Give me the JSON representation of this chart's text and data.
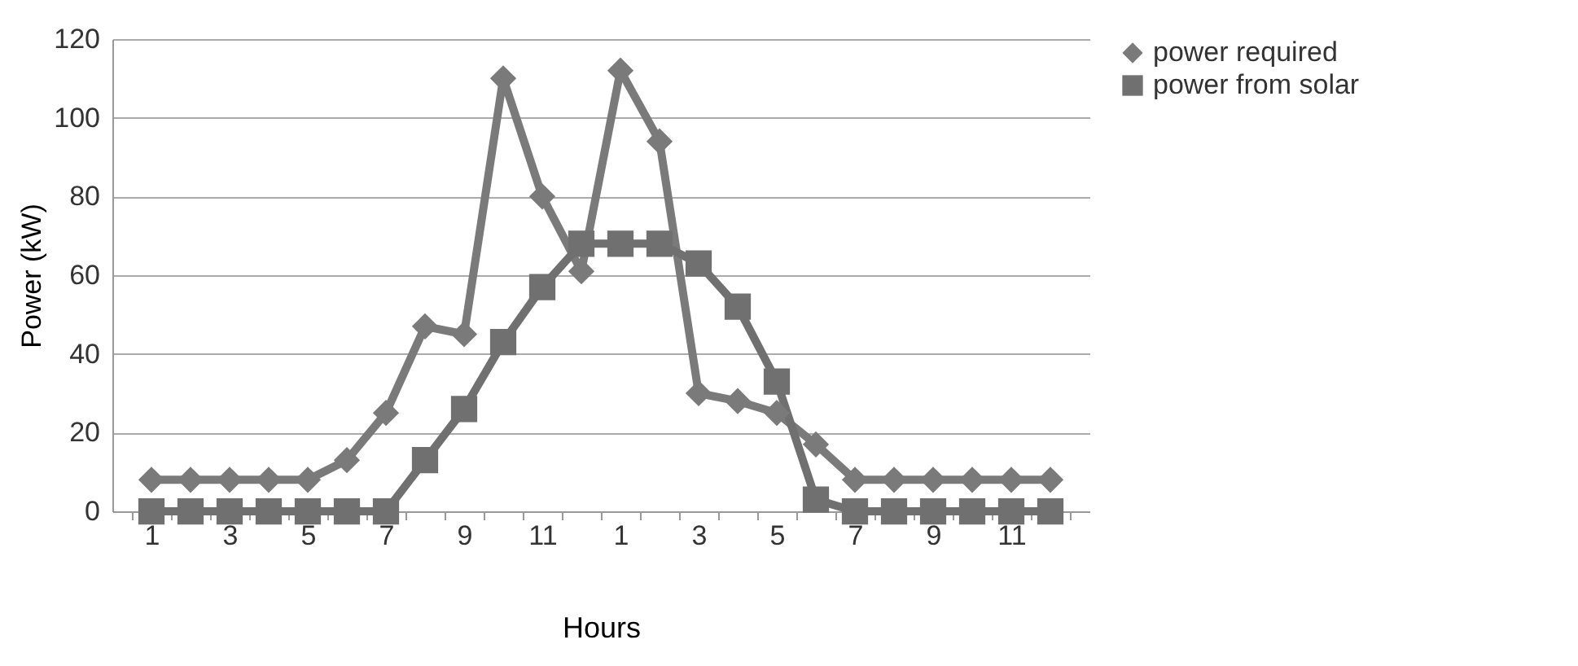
{
  "chart_data": {
    "type": "line",
    "xlabel": "Hours",
    "ylabel": "Power (kW)",
    "categories": [
      "1",
      null,
      "3",
      null,
      "5",
      null,
      "7",
      null,
      "9",
      null,
      "11",
      null,
      "1",
      null,
      "3",
      null,
      "5",
      null,
      "7",
      null,
      "9",
      null,
      "11",
      null
    ],
    "series": [
      {
        "name": "power required",
        "color": "#7a7a7a",
        "marker": "diamond",
        "values": [
          8,
          8,
          8,
          8,
          8,
          13,
          25,
          47,
          45,
          110,
          80,
          61,
          112,
          94,
          30,
          28,
          25,
          17,
          8,
          8,
          8,
          8,
          8,
          8
        ]
      },
      {
        "name": "power from solar",
        "color": "#707070",
        "marker": "square",
        "values": [
          0,
          0,
          0,
          0,
          0,
          0,
          0,
          13,
          26,
          43,
          57,
          68,
          68,
          68,
          63,
          52,
          33,
          3,
          0,
          0,
          0,
          0,
          0,
          0
        ]
      }
    ],
    "ylim": [
      0,
      120
    ],
    "yticks": [
      0,
      20,
      40,
      60,
      80,
      100,
      120
    ],
    "grid": "y",
    "legend": "right"
  }
}
